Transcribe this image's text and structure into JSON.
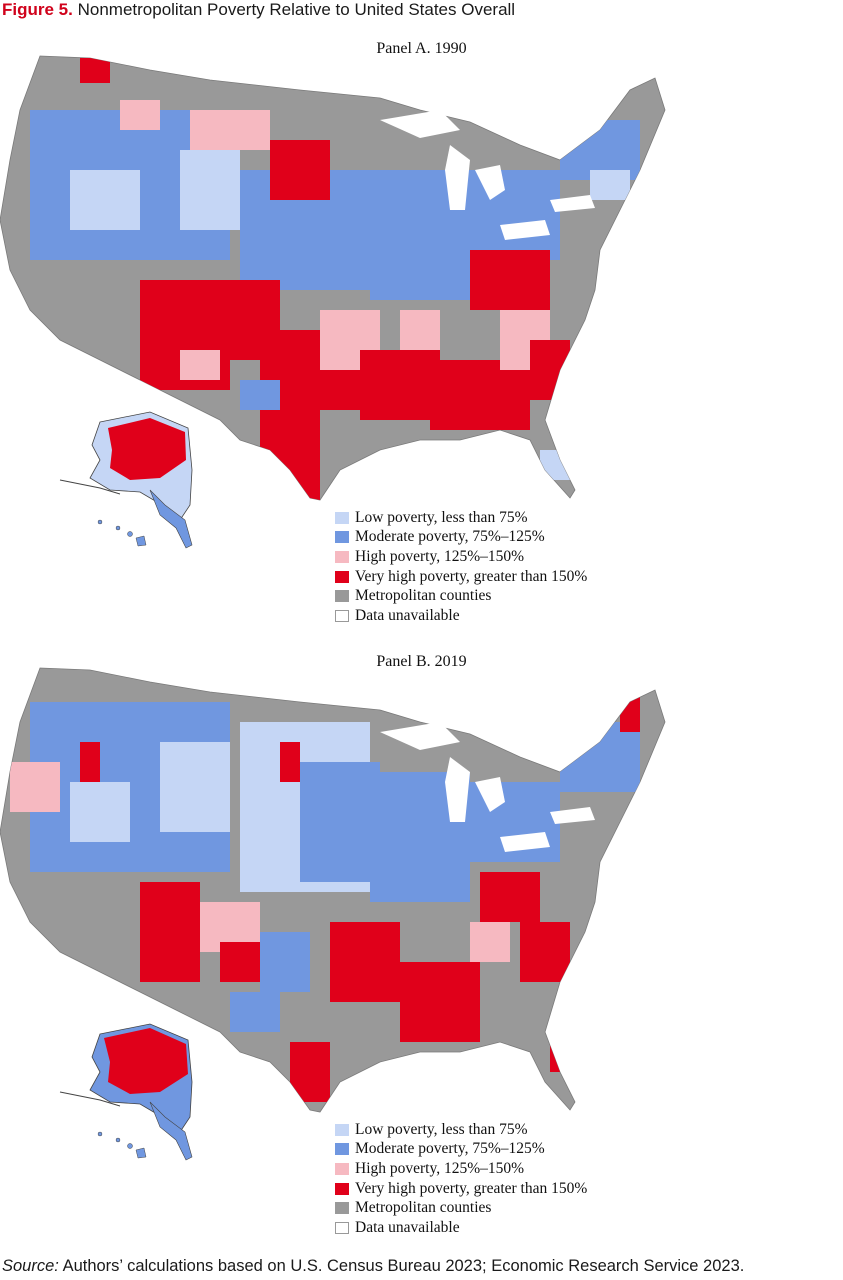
{
  "figure": {
    "label": "Figure 5.",
    "title": "Nonmetropolitan Poverty Relative to United States Overall"
  },
  "legend": [
    {
      "label": "Low poverty, less than 75%",
      "color": "#c5d6f5"
    },
    {
      "label": "Moderate poverty, 75%–125%",
      "color": "#7097e0"
    },
    {
      "label": "High poverty, 125%–150%",
      "color": "#f6b9c1"
    },
    {
      "label": "Very high poverty, greater than 150%",
      "color": "#e0001a"
    },
    {
      "label": "Metropolitan counties",
      "color": "#999999"
    },
    {
      "label": "Data unavailable",
      "color": "#ffffff"
    }
  ],
  "panels": [
    {
      "title": "Panel A. 1990"
    },
    {
      "title": "Panel B. 2019"
    }
  ],
  "source": {
    "label": "Source:",
    "text": "Authors’ calculations based on U.S. Census Bureau 2023; Economic Research Service 2023."
  }
}
